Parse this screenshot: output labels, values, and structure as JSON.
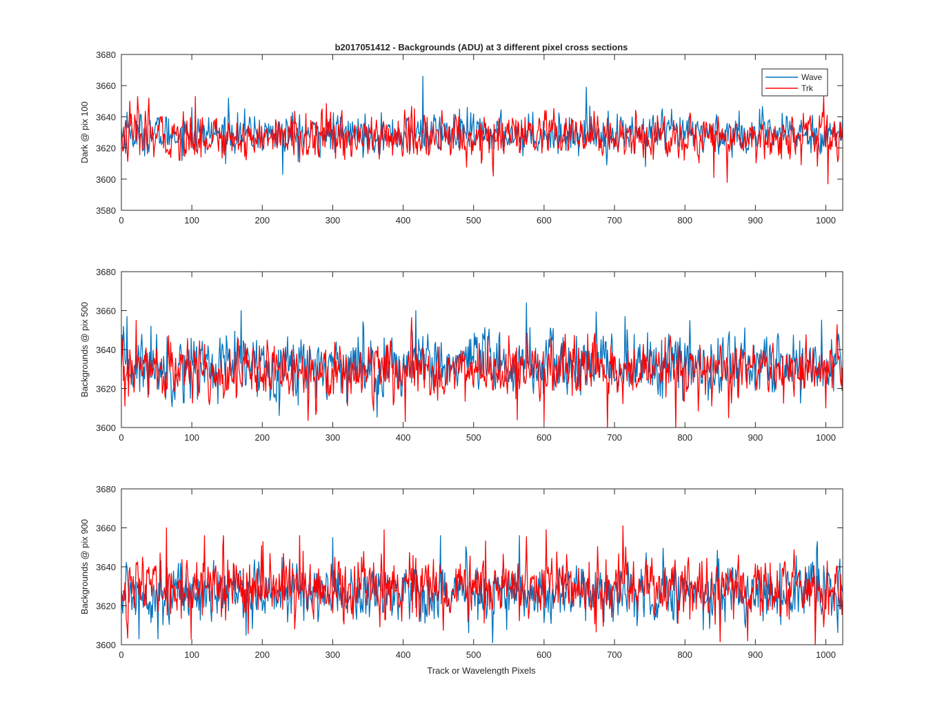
{
  "figure": {
    "title": "b2017051412 - Backgrounds (ADU) at 3 different pixel cross sections",
    "xlabel": "Track or Wavelength Pixels"
  },
  "colors": {
    "wave": "#0072BD",
    "trk": "#FF0000",
    "axes": "#262626",
    "background": "#ffffff"
  },
  "legend": {
    "entries": [
      "Wave",
      "Trk"
    ],
    "location": "top-right of first panel"
  },
  "chart_data": [
    {
      "type": "line",
      "ylabel": "Dark @ pix 100",
      "xlim": [
        0,
        1024
      ],
      "ylim": [
        3580,
        3680
      ],
      "xticks": [
        0,
        100,
        200,
        300,
        400,
        500,
        600,
        700,
        800,
        900,
        1000
      ],
      "yticks": [
        3580,
        3600,
        3620,
        3640,
        3660,
        3680
      ],
      "grid": false,
      "x": [
        0,
        1024
      ],
      "series": [
        {
          "name": "Wave",
          "color": "#0072BD",
          "mean": 3629,
          "noise_sd": 6,
          "spikes": [
            [
              8,
              3643
            ],
            [
              100,
              3646
            ],
            [
              152,
              3652
            ],
            [
              229,
              3603
            ],
            [
              428,
              3666
            ],
            [
              480,
              3645
            ],
            [
              660,
              3659
            ],
            [
              744,
              3608
            ]
          ]
        },
        {
          "name": "Trk",
          "color": "#FF0000",
          "mean": 3627,
          "noise_sd": 7,
          "spikes": [
            [
              12,
              3650
            ],
            [
              23,
              3653
            ],
            [
              39,
              3652
            ],
            [
              105,
              3653
            ],
            [
              527,
              3609
            ],
            [
              528,
              3602
            ],
            [
              841,
              3601
            ],
            [
              860,
              3598
            ],
            [
              997,
              3653
            ],
            [
              1003,
              3597
            ]
          ]
        }
      ]
    },
    {
      "type": "line",
      "ylabel": "Backgrounds @ pix 500",
      "xlim": [
        0,
        1024
      ],
      "ylim": [
        3600,
        3680
      ],
      "xticks": [
        0,
        100,
        200,
        300,
        400,
        500,
        600,
        700,
        800,
        900,
        1000
      ],
      "yticks": [
        3600,
        3620,
        3640,
        3660,
        3680
      ],
      "grid": false,
      "x": [
        0,
        1024
      ],
      "series": [
        {
          "name": "Wave",
          "color": "#0072BD",
          "mean": 3632,
          "noise_sd": 8,
          "spikes": [
            [
              8,
              3657
            ],
            [
              42,
              3652
            ],
            [
              170,
              3660
            ],
            [
              418,
              3660
            ],
            [
              575,
              3664
            ],
            [
              715,
              3657
            ],
            [
              1018,
              3648
            ]
          ]
        },
        {
          "name": "Trk",
          "color": "#FF0000",
          "mean": 3629,
          "noise_sd": 7,
          "spikes": [
            [
              5,
              3611
            ],
            [
              21,
              3655
            ],
            [
              403,
              3603
            ],
            [
              562,
              3604
            ],
            [
              600,
              3603
            ],
            [
              690,
              3600
            ],
            [
              787,
              3599
            ],
            [
              862,
              3605
            ],
            [
              1000,
              3610
            ]
          ]
        }
      ]
    },
    {
      "type": "line",
      "ylabel": "Backgrounds @ pix 900",
      "xlim": [
        0,
        1024
      ],
      "ylim": [
        3600,
        3680
      ],
      "xticks": [
        0,
        100,
        200,
        300,
        400,
        500,
        600,
        700,
        800,
        900,
        1000
      ],
      "yticks": [
        3600,
        3620,
        3640,
        3660,
        3680
      ],
      "grid": false,
      "x": [
        0,
        1024
      ],
      "series": [
        {
          "name": "Wave",
          "color": "#0072BD",
          "mean": 3627,
          "noise_sd": 7,
          "spikes": [
            [
              25,
              3603
            ],
            [
              52,
              3603
            ],
            [
              300,
              3655
            ],
            [
              453,
              3656
            ],
            [
              527,
              3601
            ],
            [
              565,
              3656
            ],
            [
              988,
              3653
            ],
            [
              1020,
              3644
            ]
          ]
        },
        {
          "name": "Trk",
          "color": "#FF0000",
          "mean": 3629,
          "noise_sd": 8,
          "spikes": [
            [
              64,
              3660
            ],
            [
              118,
              3656
            ],
            [
              145,
              3656
            ],
            [
              253,
              3656
            ],
            [
              373,
              3659
            ],
            [
              603,
              3659
            ],
            [
              712,
              3661
            ],
            [
              889,
              3602
            ],
            [
              985,
              3600
            ]
          ]
        }
      ]
    }
  ]
}
